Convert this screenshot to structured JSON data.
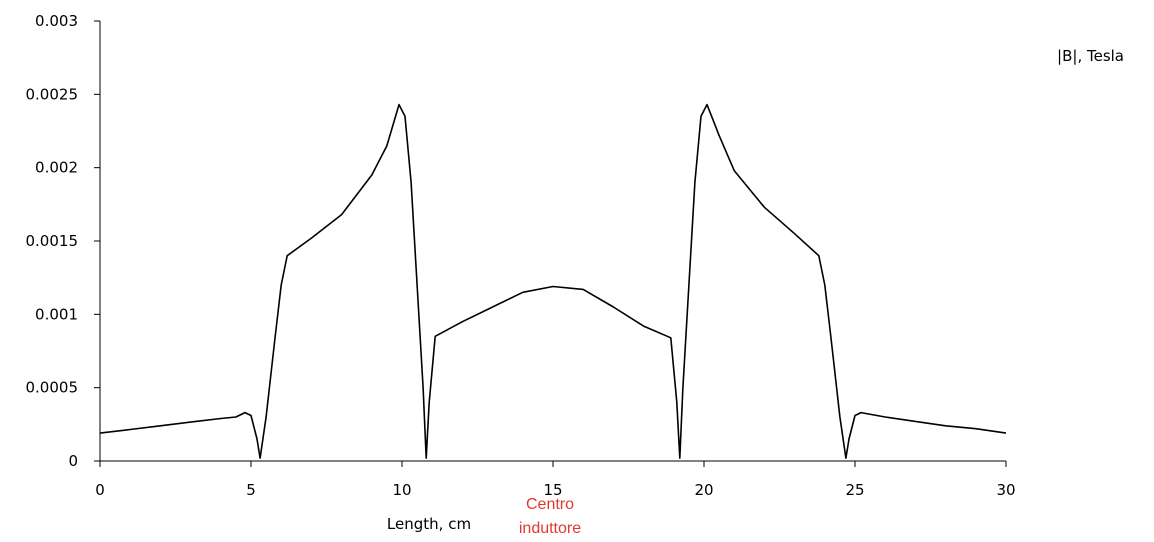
{
  "chart_data": {
    "type": "line",
    "title": "",
    "xlabel": "Length, cm",
    "ylabel": "",
    "xlim": [
      0,
      30
    ],
    "ylim": [
      0,
      0.003
    ],
    "grid": false,
    "x_ticks": [
      "0",
      "5",
      "10",
      "15",
      "20",
      "25",
      "30"
    ],
    "y_ticks": [
      "0",
      "0.0005",
      "0.001",
      "0.0015",
      "0.002",
      "0.0025",
      "0.003"
    ],
    "legend": {
      "label": "|B|, Tesla",
      "position": "top-right"
    },
    "annotation": {
      "lines": [
        "Centro",
        "induttore"
      ],
      "x": 15,
      "color": "#e03a2f"
    },
    "series": [
      {
        "color": "#000000",
        "x": [
          0,
          1,
          2,
          3,
          4,
          4.5,
          4.8,
          5.0,
          5.2,
          5.3,
          5.5,
          5.8,
          6.0,
          6.2,
          7,
          8,
          9,
          9.5,
          9.9,
          10.1,
          10.3,
          10.5,
          10.7,
          10.8,
          10.9,
          11.1,
          12,
          13,
          14,
          15,
          16,
          17,
          18,
          18.9,
          19.1,
          19.2,
          19.3,
          19.5,
          19.7,
          19.9,
          20.1,
          20.5,
          21,
          22,
          23,
          23.8,
          24.0,
          24.2,
          24.5,
          24.7,
          24.8,
          25.0,
          25.2,
          26,
          27,
          28,
          29,
          30
        ],
        "y": [
          0.00019,
          0.000215,
          0.00024,
          0.000265,
          0.00029,
          0.0003,
          0.00033,
          0.00031,
          0.00015,
          2e-05,
          0.0003,
          0.00085,
          0.0012,
          0.0014,
          0.00152,
          0.00168,
          0.00195,
          0.00215,
          0.00243,
          0.00235,
          0.0019,
          0.0012,
          0.0005,
          2e-05,
          0.0004,
          0.00085,
          0.00095,
          0.00105,
          0.00115,
          0.00119,
          0.00117,
          0.00105,
          0.00092,
          0.00084,
          0.0004,
          2e-05,
          0.0005,
          0.0012,
          0.0019,
          0.00235,
          0.00243,
          0.00222,
          0.00198,
          0.00173,
          0.00155,
          0.0014,
          0.0012,
          0.00085,
          0.0003,
          2e-05,
          0.00015,
          0.00031,
          0.00033,
          0.0003,
          0.00027,
          0.00024,
          0.00022,
          0.00019
        ]
      }
    ]
  }
}
